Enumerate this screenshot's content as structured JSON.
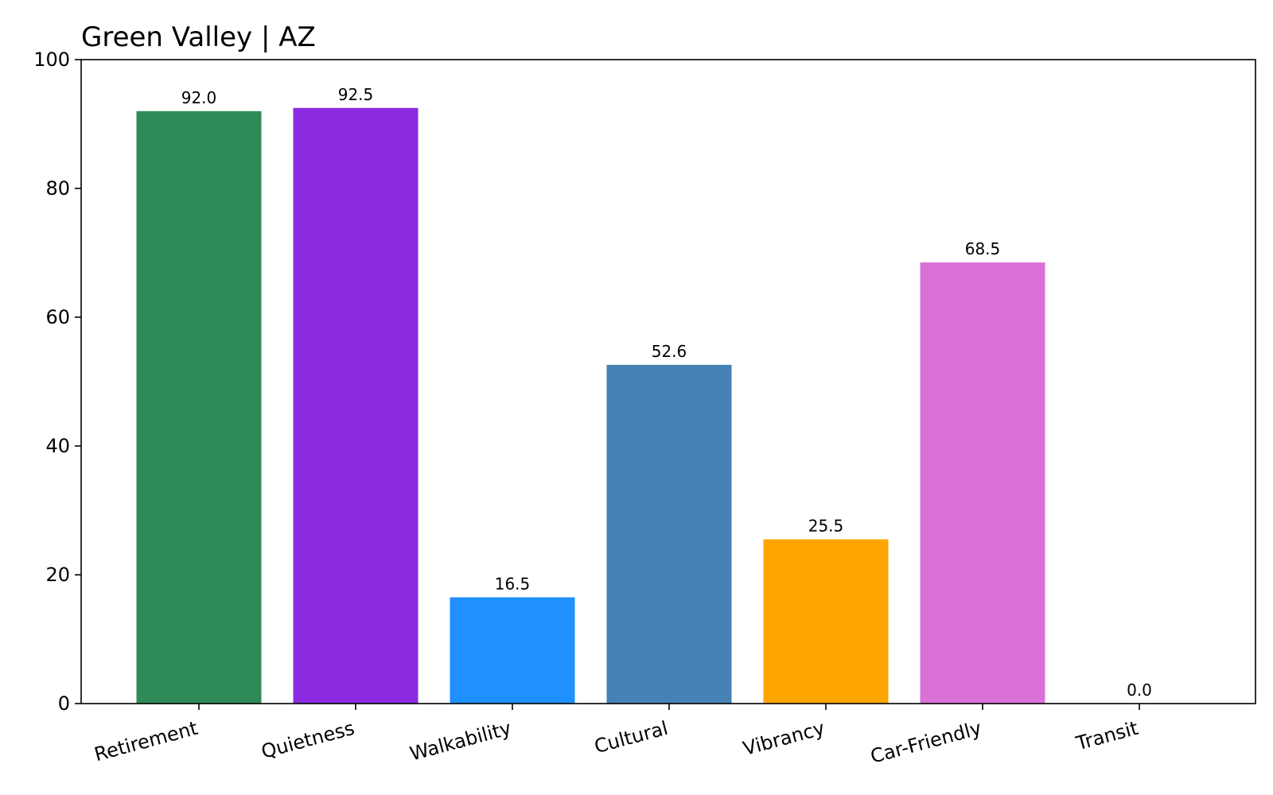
{
  "chart_data": {
    "type": "bar",
    "title": "Green Valley | AZ",
    "xlabel": "",
    "ylabel": "",
    "categories": [
      "Retirement",
      "Quietness",
      "Walkability",
      "Cultural",
      "Vibrancy",
      "Car-Friendly",
      "Transit"
    ],
    "values": [
      92.0,
      92.5,
      16.5,
      52.6,
      25.5,
      68.5,
      0.0
    ],
    "value_labels": [
      "92.0",
      "92.5",
      "16.5",
      "52.6",
      "25.5",
      "68.5",
      "0.0"
    ],
    "colors": [
      "#2e8b57",
      "#8a2be2",
      "#1e90ff",
      "#4682b4",
      "#ffa500",
      "#da70d6",
      "#808080"
    ],
    "ylim": [
      0,
      100
    ],
    "yticks": [
      0,
      20,
      40,
      60,
      80,
      100
    ],
    "ytick_labels": [
      "0",
      "20",
      "40",
      "60",
      "80",
      "100"
    ],
    "grid": false,
    "legend": "none"
  }
}
